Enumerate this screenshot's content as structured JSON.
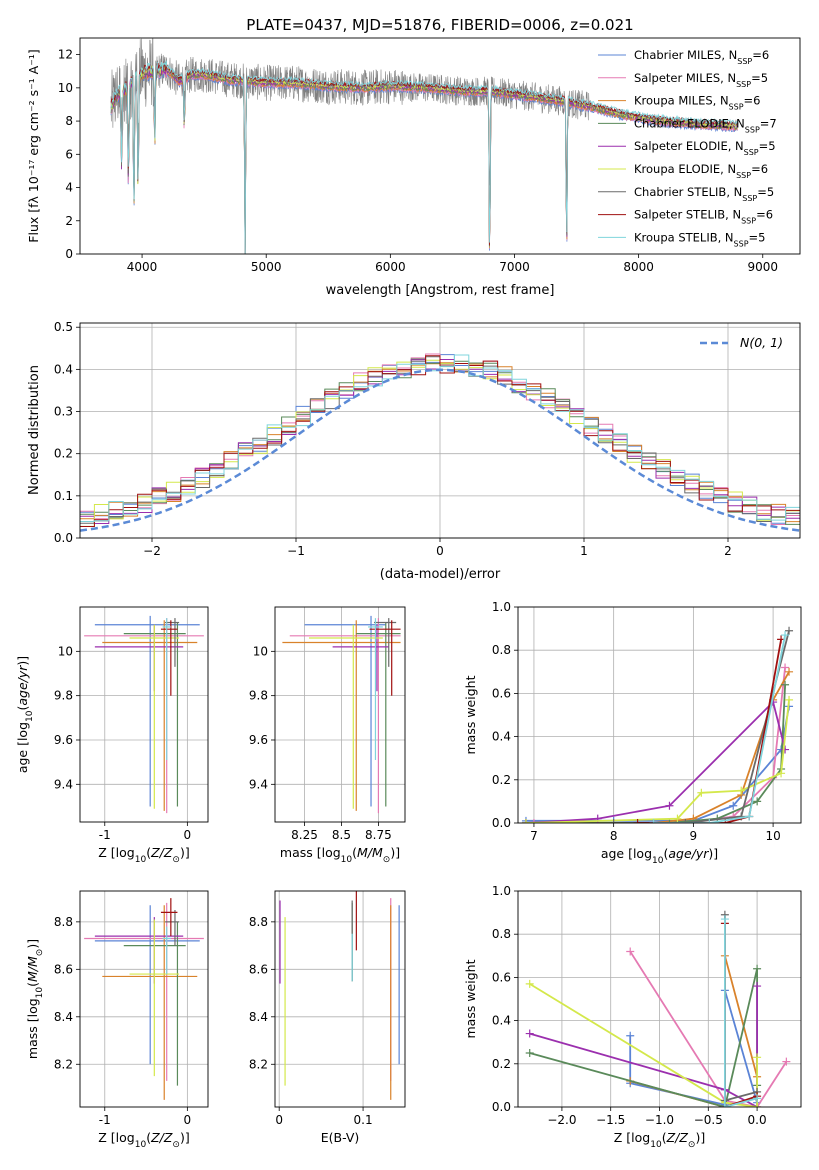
{
  "figure": {
    "title": "PLATE=0437, MJD=51876, FIBERID=0006, z=0.021"
  },
  "colors": {
    "Chabrier MILES": "#5b84d6",
    "Salpeter MILES": "#e57ab3",
    "Kroupa MILES": "#d9822b",
    "Chabrier ELODIE": "#5a8a5a",
    "Salpeter ELODIE": "#9b2fae",
    "Kroupa ELODIE": "#d4e84b",
    "Chabrier STELIB": "#6a6a6a",
    "Salpeter STELIB": "#a01010",
    "Kroupa STELIB": "#7fd4dc",
    "data": "#808080",
    "normal": "#5b8ad6"
  },
  "chart_data": [
    {
      "id": "spectrum",
      "type": "line",
      "title": "PLATE=0437, MJD=51876, FIBERID=0006, z=0.021",
      "xlabel": "wavelength [Angstrom, rest frame]",
      "ylabel": "Flux [fλ 10⁻¹⁷ erg cm⁻² s⁻¹ A⁻¹]",
      "xlim": [
        3500,
        9300
      ],
      "ylim": [
        0,
        13
      ],
      "xticks": [
        4000,
        5000,
        6000,
        7000,
        8000,
        9000
      ],
      "yticks": [
        0,
        2,
        4,
        6,
        8,
        10,
        12
      ],
      "grid": false,
      "legend_position": "top-right",
      "legend": [
        {
          "label": "Chabrier MILES, N",
          "sub": "SSP",
          "value": "=6"
        },
        {
          "label": "Salpeter MILES, N",
          "sub": "SSP",
          "value": "=5"
        },
        {
          "label": "Kroupa MILES, N",
          "sub": "SSP",
          "value": "=6"
        },
        {
          "label": "Chabrier ELODIE, N",
          "sub": "SSP",
          "value": "=7"
        },
        {
          "label": "Salpeter ELODIE, N",
          "sub": "SSP",
          "value": "=5"
        },
        {
          "label": "Kroupa ELODIE, N",
          "sub": "SSP",
          "value": "=6"
        },
        {
          "label": "Chabrier STELIB, N",
          "sub": "SSP",
          "value": "=5"
        },
        {
          "label": "Salpeter STELIB, N",
          "sub": "SSP",
          "value": "=6"
        },
        {
          "label": "Kroupa STELIB, N",
          "sub": "SSP",
          "value": "=5"
        }
      ],
      "continuum": {
        "x": [
          3750,
          3800,
          3850,
          3900,
          3950,
          4000,
          4100,
          4200,
          4300,
          4400,
          4500,
          4700,
          5000,
          5200,
          5500,
          5800,
          6000,
          6300,
          6600,
          6800,
          7000,
          7200,
          7400,
          7500,
          7600,
          7700,
          7800,
          8000,
          8200,
          8500,
          8800
        ],
        "y": [
          8.8,
          9.6,
          9.8,
          10.2,
          10.6,
          10.9,
          11.0,
          11.1,
          10.4,
          10.8,
          10.8,
          10.5,
          10.3,
          10.3,
          10.1,
          10.0,
          10.1,
          10.0,
          9.8,
          9.8,
          9.6,
          9.4,
          9.2,
          9.0,
          8.9,
          8.7,
          8.5,
          8.2,
          8.0,
          7.8,
          7.7
        ]
      },
      "absorption_lines": [
        {
          "x": 3835,
          "depth": 4.5
        },
        {
          "x": 3890,
          "depth": 6.0
        },
        {
          "x": 3934,
          "depth": 8.0
        },
        {
          "x": 3968,
          "depth": 7.0
        },
        {
          "x": 4102,
          "depth": 4.5
        },
        {
          "x": 4340,
          "depth": 3.0
        },
        {
          "x": 4830,
          "depth": 11.0
        },
        {
          "x": 6800,
          "depth": 10.5
        },
        {
          "x": 7420,
          "depth": 9.0
        }
      ]
    },
    {
      "id": "residuals",
      "type": "histogram",
      "xlabel": "(data-model)/error",
      "ylabel": "Normed distribution",
      "xlim": [
        -2.5,
        2.5
      ],
      "ylim": [
        0,
        0.51
      ],
      "xticks": [
        -2,
        -1,
        0,
        1,
        2
      ],
      "yticks": [
        0.0,
        0.1,
        0.2,
        0.3,
        0.4,
        0.5
      ],
      "grid": true,
      "legend_position": "top-right",
      "legend_label": "N(0, 1)",
      "bin_width": 0.1,
      "bin_start": -2.5,
      "series_count": 9
    },
    {
      "id": "age-vs-Z",
      "type": "errorbar",
      "xlabel": "Z [log₁₀(Z/Z⊙)]",
      "ylabel": "age  [log₁₀(age/yr)]",
      "xlim": [
        -1.3,
        0.25
      ],
      "ylim": [
        9.23,
        10.2
      ],
      "xticks": [
        -1,
        0
      ],
      "yticks": [
        9.4,
        9.6,
        9.8,
        10.0
      ],
      "grid": true,
      "points": [
        {
          "series": "Chabrier MILES",
          "x": -0.45,
          "y": 10.12,
          "xerr": [
            0.67,
            0.6
          ],
          "yerr": [
            0.82,
            0.04
          ]
        },
        {
          "series": "Salpeter MILES",
          "x": -0.25,
          "y": 10.07,
          "xerr": [
            1.0,
            0.45
          ],
          "yerr": [
            0.8,
            0.08
          ]
        },
        {
          "series": "Kroupa MILES",
          "x": -0.28,
          "y": 10.04,
          "xerr": [
            0.75,
            0.4
          ],
          "yerr": [
            0.76,
            0.1
          ]
        },
        {
          "series": "Chabrier ELODIE",
          "x": -0.12,
          "y": 10.08,
          "xerr": [
            0.65,
            0.1
          ],
          "yerr": [
            0.78,
            0.05
          ]
        },
        {
          "series": "Salpeter ELODIE",
          "x": -0.4,
          "y": 10.02,
          "xerr": [
            0.72,
            0.35
          ],
          "yerr": [
            0.2,
            0.1
          ]
        },
        {
          "series": "Kroupa ELODIE",
          "x": -0.4,
          "y": 10.06,
          "xerr": [
            0.3,
            0.3
          ],
          "yerr": [
            0.77,
            0.06
          ]
        },
        {
          "series": "Chabrier STELIB",
          "x": -0.15,
          "y": 10.13,
          "xerr": [
            0.12,
            0.05
          ],
          "yerr": [
            0.2,
            0.02
          ]
        },
        {
          "series": "Salpeter STELIB",
          "x": -0.2,
          "y": 10.1,
          "xerr": [
            0.12,
            0.08
          ],
          "yerr": [
            0.3,
            0.04
          ]
        },
        {
          "series": "Kroupa STELIB",
          "x": -0.25,
          "y": 10.11,
          "xerr": [
            0.05,
            0.05
          ],
          "yerr": [
            0.6,
            0.04
          ]
        }
      ]
    },
    {
      "id": "age-vs-mass",
      "type": "errorbar",
      "xlabel": "mass [log₁₀(M/M⊙)]",
      "ylabel": "",
      "xlim": [
        8.05,
        8.93
      ],
      "ylim": [
        9.23,
        10.2
      ],
      "xticks": [
        8.25,
        8.5,
        8.75
      ],
      "yticks": [
        9.4,
        9.6,
        9.8,
        10.0
      ],
      "grid": true,
      "points": [
        {
          "series": "Chabrier MILES",
          "x": 8.7,
          "y": 10.12,
          "xerr": [
            0.45,
            0.1
          ],
          "yerr": [
            0.82,
            0.04
          ]
        },
        {
          "series": "Salpeter MILES",
          "x": 8.75,
          "y": 10.07,
          "xerr": [
            0.6,
            0.15
          ],
          "yerr": [
            0.8,
            0.08
          ]
        },
        {
          "series": "Kroupa MILES",
          "x": 8.6,
          "y": 10.04,
          "xerr": [
            0.5,
            0.3
          ],
          "yerr": [
            0.76,
            0.1
          ]
        },
        {
          "series": "Chabrier ELODIE",
          "x": 8.8,
          "y": 10.08,
          "xerr": [
            0.2,
            0.1
          ],
          "yerr": [
            0.78,
            0.05
          ]
        },
        {
          "series": "Salpeter ELODIE",
          "x": 8.74,
          "y": 10.02,
          "xerr": [
            0.3,
            0.08
          ],
          "yerr": [
            0.2,
            0.1
          ]
        },
        {
          "series": "Kroupa ELODIE",
          "x": 8.58,
          "y": 10.06,
          "xerr": [
            0.3,
            0.2
          ],
          "yerr": [
            0.77,
            0.06
          ]
        },
        {
          "series": "Chabrier STELIB",
          "x": 8.82,
          "y": 10.13,
          "xerr": [
            0.1,
            0.05
          ],
          "yerr": [
            0.2,
            0.02
          ]
        },
        {
          "series": "Salpeter STELIB",
          "x": 8.84,
          "y": 10.1,
          "xerr": [
            0.15,
            0.06
          ],
          "yerr": [
            0.3,
            0.04
          ]
        },
        {
          "series": "Kroupa STELIB",
          "x": 8.73,
          "y": 10.11,
          "xerr": [
            0.05,
            0.05
          ],
          "yerr": [
            0.6,
            0.04
          ]
        }
      ]
    },
    {
      "id": "mass-weight-vs-age",
      "type": "line",
      "xlabel": "age  [log₁₀(age/yr)]",
      "ylabel": "mass weight",
      "xlim": [
        6.8,
        10.35
      ],
      "ylim": [
        0,
        1
      ],
      "xticks": [
        7,
        8,
        9,
        10
      ],
      "yticks": [
        0.0,
        0.2,
        0.4,
        0.6,
        0.8,
        1.0
      ],
      "grid": true,
      "series": [
        {
          "name": "Chabrier MILES",
          "x": [
            6.9,
            8.0,
            9.0,
            9.5,
            10.1,
            10.2
          ],
          "y": [
            0.01,
            0.01,
            0.01,
            0.08,
            0.34,
            0.54
          ]
        },
        {
          "name": "Salpeter MILES",
          "x": [
            7.0,
            8.9,
            9.5,
            10.0,
            10.15
          ],
          "y": [
            0.0,
            0.0,
            0.03,
            0.21,
            0.72
          ]
        },
        {
          "name": "Kroupa MILES",
          "x": [
            6.9,
            8.5,
            9.0,
            9.6,
            10.0,
            10.2
          ],
          "y": [
            0.0,
            0.0,
            0.02,
            0.13,
            0.57,
            0.7
          ]
        },
        {
          "name": "Chabrier ELODIE",
          "x": [
            6.9,
            8.7,
            9.3,
            9.8,
            10.1,
            10.15
          ],
          "y": [
            0.0,
            0.0,
            0.02,
            0.1,
            0.25,
            0.64
          ]
        },
        {
          "name": "Salpeter ELODIE",
          "x": [
            6.9,
            7.8,
            8.7,
            10.0,
            10.15
          ],
          "y": [
            0.0,
            0.02,
            0.08,
            0.56,
            0.34
          ]
        },
        {
          "name": "Kroupa ELODIE",
          "x": [
            6.9,
            8.8,
            9.1,
            9.6,
            10.1,
            10.2
          ],
          "y": [
            0.0,
            0.02,
            0.14,
            0.15,
            0.23,
            0.57
          ]
        },
        {
          "name": "Chabrier STELIB",
          "x": [
            8.0,
            8.9,
            9.6,
            10.2
          ],
          "y": [
            0.0,
            0.0,
            0.03,
            0.89
          ]
        },
        {
          "name": "Salpeter STELIB",
          "x": [
            8.3,
            9.4,
            9.7,
            10.1
          ],
          "y": [
            0.0,
            0.0,
            0.03,
            0.85
          ]
        },
        {
          "name": "Kroupa STELIB",
          "x": [
            8.5,
            9.2,
            9.7,
            10.15
          ],
          "y": [
            0.0,
            0.0,
            0.03,
            0.87
          ]
        }
      ]
    },
    {
      "id": "mass-vs-Z",
      "type": "errorbar",
      "xlabel": "Z [log₁₀(Z/Z⊙)]",
      "ylabel": "mass [log₁₀(M/M⊙)]",
      "xlim": [
        -1.3,
        0.25
      ],
      "ylim": [
        8.02,
        8.93
      ],
      "xticks": [
        -1,
        0
      ],
      "yticks": [
        8.2,
        8.4,
        8.6,
        8.8
      ],
      "grid": true,
      "points": [
        {
          "series": "Chabrier MILES",
          "x": -0.45,
          "y": 8.72,
          "xerr": [
            0.67,
            0.6
          ],
          "yerr": [
            0.52,
            0.15
          ]
        },
        {
          "series": "Salpeter MILES",
          "x": -0.25,
          "y": 8.73,
          "xerr": [
            1.0,
            0.45
          ],
          "yerr": [
            0.6,
            0.15
          ]
        },
        {
          "series": "Kroupa MILES",
          "x": -0.28,
          "y": 8.57,
          "xerr": [
            0.75,
            0.4
          ],
          "yerr": [
            0.52,
            0.3
          ]
        },
        {
          "series": "Chabrier ELODIE",
          "x": -0.12,
          "y": 8.7,
          "xerr": [
            0.65,
            0.1
          ],
          "yerr": [
            0.59,
            0.1
          ]
        },
        {
          "series": "Salpeter ELODIE",
          "x": -0.4,
          "y": 8.74,
          "xerr": [
            0.72,
            0.35
          ],
          "yerr": [
            0.2,
            0.08
          ]
        },
        {
          "series": "Kroupa ELODIE",
          "x": -0.4,
          "y": 8.58,
          "xerr": [
            0.3,
            0.3
          ],
          "yerr": [
            0.43,
            0.23
          ]
        },
        {
          "series": "Chabrier STELIB",
          "x": -0.15,
          "y": 8.8,
          "xerr": [
            0.12,
            0.05
          ],
          "yerr": [
            0.1,
            0.05
          ]
        },
        {
          "series": "Salpeter STELIB",
          "x": -0.2,
          "y": 8.84,
          "xerr": [
            0.12,
            0.08
          ],
          "yerr": [
            0.1,
            0.06
          ]
        },
        {
          "series": "Kroupa STELIB",
          "x": -0.25,
          "y": 8.73,
          "xerr": [
            0.05,
            0.05
          ],
          "yerr": [
            0.15,
            0.05
          ]
        }
      ]
    },
    {
      "id": "mass-vs-EBV",
      "type": "errorbar",
      "xlabel": "E(B-V)",
      "ylabel": "",
      "xlim": [
        -0.005,
        0.15
      ],
      "ylim": [
        8.02,
        8.93
      ],
      "xticks": [
        0.0,
        0.1
      ],
      "yticks": [
        8.2,
        8.4,
        8.6,
        8.8
      ],
      "grid": true,
      "points": [
        {
          "series": "Chabrier MILES",
          "x": 0.143,
          "y": 8.72,
          "yerr": [
            0.52,
            0.15
          ]
        },
        {
          "series": "Salpeter MILES",
          "x": 0.133,
          "y": 8.73,
          "yerr": [
            0.6,
            0.17
          ]
        },
        {
          "series": "Kroupa MILES",
          "x": 0.133,
          "y": 8.57,
          "yerr": [
            0.52,
            0.3
          ]
        },
        {
          "series": "Chabrier ELODIE",
          "x": 0.087,
          "y": 8.7,
          "yerr": [
            0.15,
            0.18
          ]
        },
        {
          "series": "Salpeter ELODIE",
          "x": 0.001,
          "y": 8.74,
          "yerr": [
            0.2,
            0.15
          ]
        },
        {
          "series": "Kroupa ELODIE",
          "x": 0.007,
          "y": 8.58,
          "yerr": [
            0.47,
            0.24
          ]
        },
        {
          "series": "Chabrier STELIB",
          "x": 0.087,
          "y": 8.75,
          "yerr": [
            0.2,
            0.14
          ]
        },
        {
          "series": "Salpeter STELIB",
          "x": 0.092,
          "y": 8.8,
          "yerr": [
            0.12,
            0.13
          ]
        },
        {
          "series": "Kroupa STELIB",
          "x": 0.087,
          "y": 8.65,
          "yerr": [
            0.1,
            0.1
          ]
        }
      ]
    },
    {
      "id": "mass-weight-vs-Z",
      "type": "line",
      "xlabel": "Z [log₁₀(Z/Z⊙)]",
      "ylabel": "mass weight",
      "xlim": [
        -2.45,
        0.45
      ],
      "ylim": [
        0,
        1
      ],
      "xticks": [
        -2.0,
        -1.5,
        -1.0,
        -0.5,
        0.0
      ],
      "yticks": [
        0.0,
        0.2,
        0.4,
        0.6,
        0.8,
        1.0
      ],
      "grid": true,
      "series": [
        {
          "name": "Chabrier MILES",
          "x": [
            -1.3,
            -1.3,
            -0.33,
            -0.33,
            0.0
          ],
          "y": [
            0.33,
            0.11,
            0.01,
            0.54,
            0.02
          ]
        },
        {
          "name": "Salpeter MILES",
          "x": [
            -1.3,
            -0.33,
            0.0,
            0.3
          ],
          "y": [
            0.72,
            0.03,
            0.0,
            0.21
          ]
        },
        {
          "name": "Kroupa MILES",
          "x": [
            -1.3,
            -0.33,
            -0.33,
            0.0
          ],
          "y": [
            0.12,
            0.0,
            0.7,
            0.14
          ]
        },
        {
          "name": "Chabrier ELODIE",
          "x": [
            -2.33,
            -0.33,
            0.0,
            0.0
          ],
          "y": [
            0.25,
            0.0,
            0.64,
            0.1
          ]
        },
        {
          "name": "Salpeter ELODIE",
          "x": [
            -2.33,
            -0.33,
            0.0,
            0.0
          ],
          "y": [
            0.34,
            0.08,
            0.0,
            0.56
          ]
        },
        {
          "name": "Kroupa ELODIE",
          "x": [
            -2.33,
            -0.33,
            0.0,
            0.0
          ],
          "y": [
            0.57,
            0.02,
            0.0,
            0.23
          ]
        },
        {
          "name": "Chabrier STELIB",
          "x": [
            -0.33,
            -0.33,
            0.0
          ],
          "y": [
            0.89,
            0.03,
            0.07
          ]
        },
        {
          "name": "Salpeter STELIB",
          "x": [
            -0.33,
            -0.33,
            0.0
          ],
          "y": [
            0.85,
            0.0,
            0.05
          ]
        },
        {
          "name": "Kroupa STELIB",
          "x": [
            -0.33,
            -0.33,
            0.0
          ],
          "y": [
            0.87,
            0.0,
            0.04
          ]
        }
      ]
    }
  ]
}
